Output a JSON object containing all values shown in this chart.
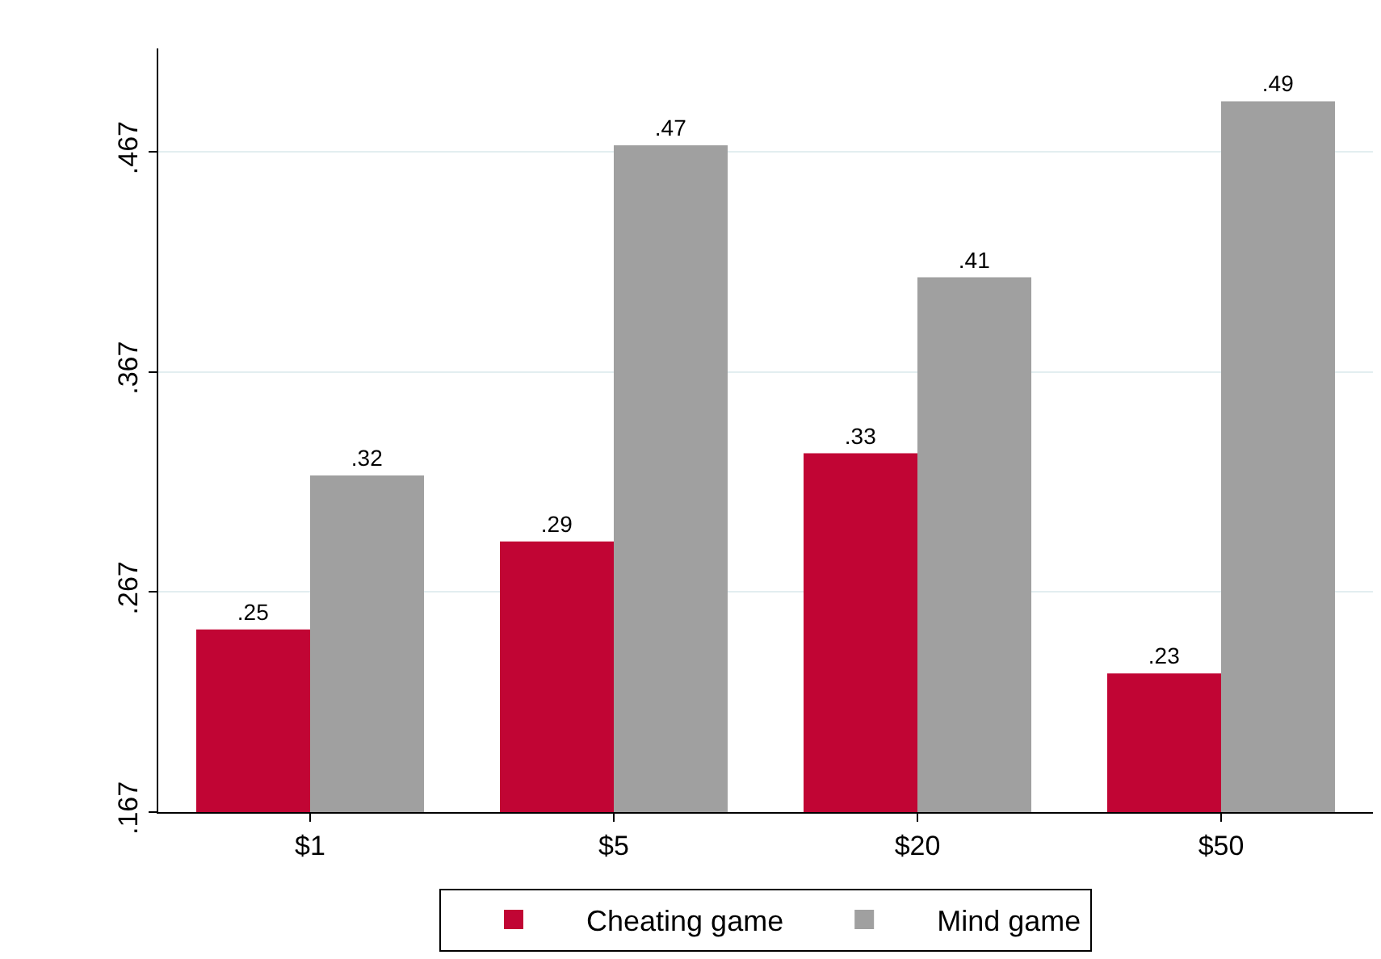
{
  "chart_data": {
    "type": "bar",
    "categories": [
      "$1",
      "$5",
      "$20",
      "$50"
    ],
    "series": [
      {
        "name": "Cheating game",
        "color": "#c10534",
        "values": [
          0.25,
          0.29,
          0.33,
          0.23
        ],
        "value_labels": [
          ".25",
          ".29",
          ".33",
          ".23"
        ]
      },
      {
        "name": "Mind game",
        "color": "#a0a0a0",
        "values": [
          0.32,
          0.47,
          0.41,
          0.49
        ],
        "value_labels": [
          ".32",
          ".47",
          ".41",
          ".49"
        ]
      }
    ],
    "ylim": [
      0.167,
      0.514
    ],
    "yticks": [
      {
        "value": 0.167,
        "label": ".167"
      },
      {
        "value": 0.267,
        "label": ".267"
      },
      {
        "value": 0.367,
        "label": ".367"
      },
      {
        "value": 0.467,
        "label": ".467"
      }
    ],
    "grid": "y",
    "legend": "bottom"
  }
}
